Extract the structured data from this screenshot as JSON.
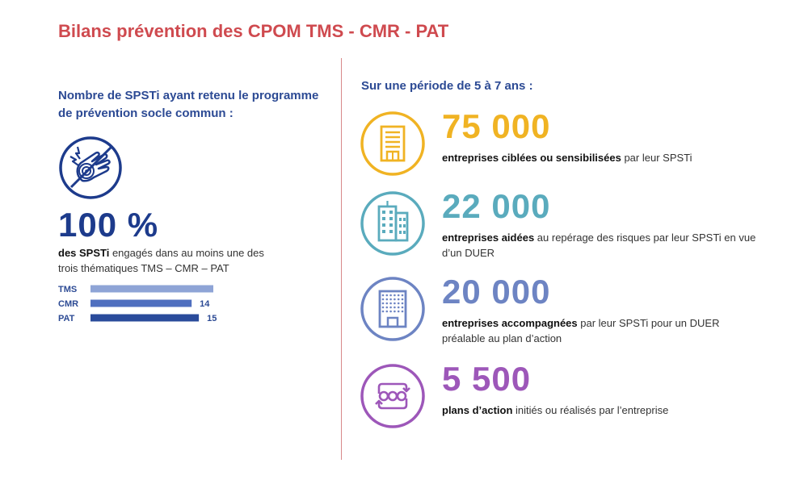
{
  "title": "Bilans prévention des CPOM TMS - CMR - PAT",
  "left": {
    "heading": "Nombre de SPSTi ayant retenu le programme de prévention socle commun :",
    "icon": "hand-vibration-icon",
    "big_value": "100 %",
    "desc_bold": "des SPSTi",
    "desc_rest": " engagés dans au moins une des trois thématiques TMS – CMR – PAT"
  },
  "right": {
    "heading": "Sur une période de 5 à 7 ans :",
    "stats": [
      {
        "value": "75 000",
        "bold": "entreprises ciblées ou sensibilisées",
        "rest": " par leur SPSTi",
        "color": "#f0b323",
        "icon": "building-icon"
      },
      {
        "value": "22 000",
        "bold": "entreprises aidées",
        "rest": " au repérage des risques par leur SPSTi en vue d’un DUER",
        "color": "#5aabbd",
        "icon": "office-buildings-icon"
      },
      {
        "value": "20 000",
        "bold": "entreprises accompagnées",
        "rest": " par leur SPSTi pour un DUER préalable au plan d’action",
        "color": "#6d84c3",
        "icon": "office-facade-icon"
      },
      {
        "value": "5 500",
        "bold": "plans d’action",
        "rest": " initiés ou réalisés par l’entreprise",
        "color": "#9d57b9",
        "icon": "action-cycle-icon"
      }
    ]
  },
  "chart_data": {
    "type": "bar",
    "orientation": "horizontal",
    "categories": [
      "TMS",
      "CMR",
      "PAT"
    ],
    "values": [
      17,
      14,
      15
    ],
    "colors": [
      "#8ea4d6",
      "#4f6fbf",
      "#2a4b9b"
    ],
    "title": "",
    "xlabel": "",
    "ylabel": "",
    "xlim": [
      0,
      17
    ],
    "grid": false
  }
}
